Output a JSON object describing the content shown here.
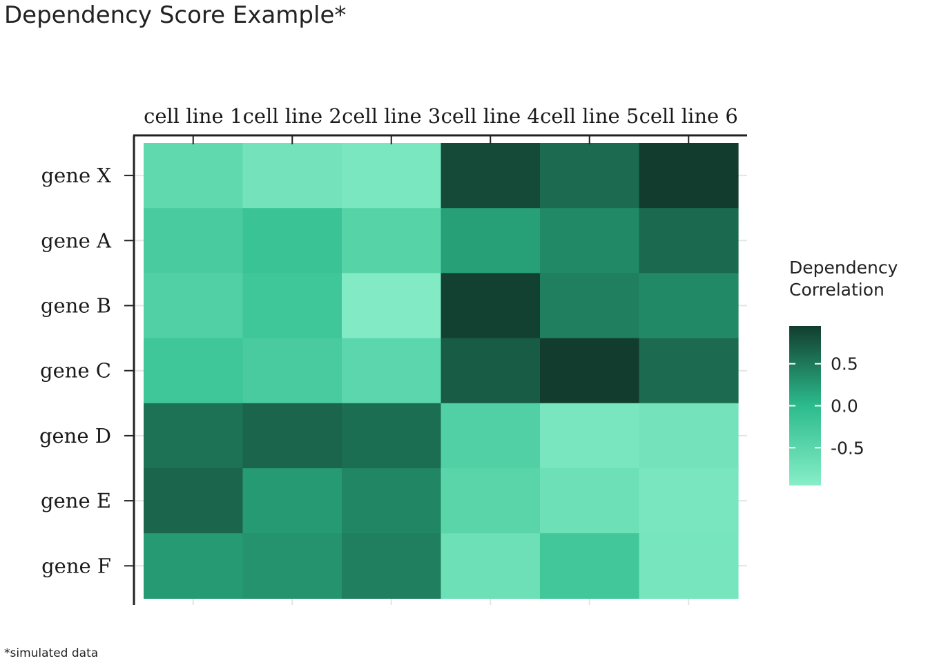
{
  "chart_data": {
    "type": "heatmap",
    "title": "Dependency Score Example*",
    "caption": "*simulated data",
    "x_categories": [
      "cell line 1",
      "cell line 2",
      "cell line 3",
      "cell line 4",
      "cell line 5",
      "cell line 6"
    ],
    "y_categories": [
      "gene X",
      "gene A",
      "gene B",
      "gene C",
      "gene D",
      "gene E",
      "gene F"
    ],
    "values": [
      [
        -0.55,
        -0.75,
        -0.82,
        0.85,
        0.6,
        0.95
      ],
      [
        -0.3,
        -0.15,
        -0.45,
        0.2,
        0.38,
        0.62
      ],
      [
        -0.4,
        -0.2,
        -0.9,
        0.92,
        0.45,
        0.38
      ],
      [
        -0.2,
        -0.3,
        -0.5,
        0.72,
        0.95,
        0.6
      ],
      [
        0.55,
        0.65,
        0.58,
        -0.4,
        -0.8,
        -0.75
      ],
      [
        0.65,
        0.25,
        0.4,
        -0.48,
        -0.68,
        -0.8
      ],
      [
        0.25,
        0.3,
        0.45,
        -0.68,
        -0.22,
        -0.78
      ]
    ],
    "x_axis_position": "top",
    "legend": {
      "title_lines": [
        "Dependency",
        "Correlation"
      ],
      "position": "right",
      "range": [
        -0.95,
        0.95
      ],
      "ticks": [
        0.5,
        0.0,
        -0.5
      ],
      "tick_labels": [
        "0.5",
        "0.0",
        "-0.5"
      ],
      "colors": {
        "low": "#87eec8",
        "mid": "#2cbb8c",
        "high": "#123d2e"
      }
    }
  }
}
